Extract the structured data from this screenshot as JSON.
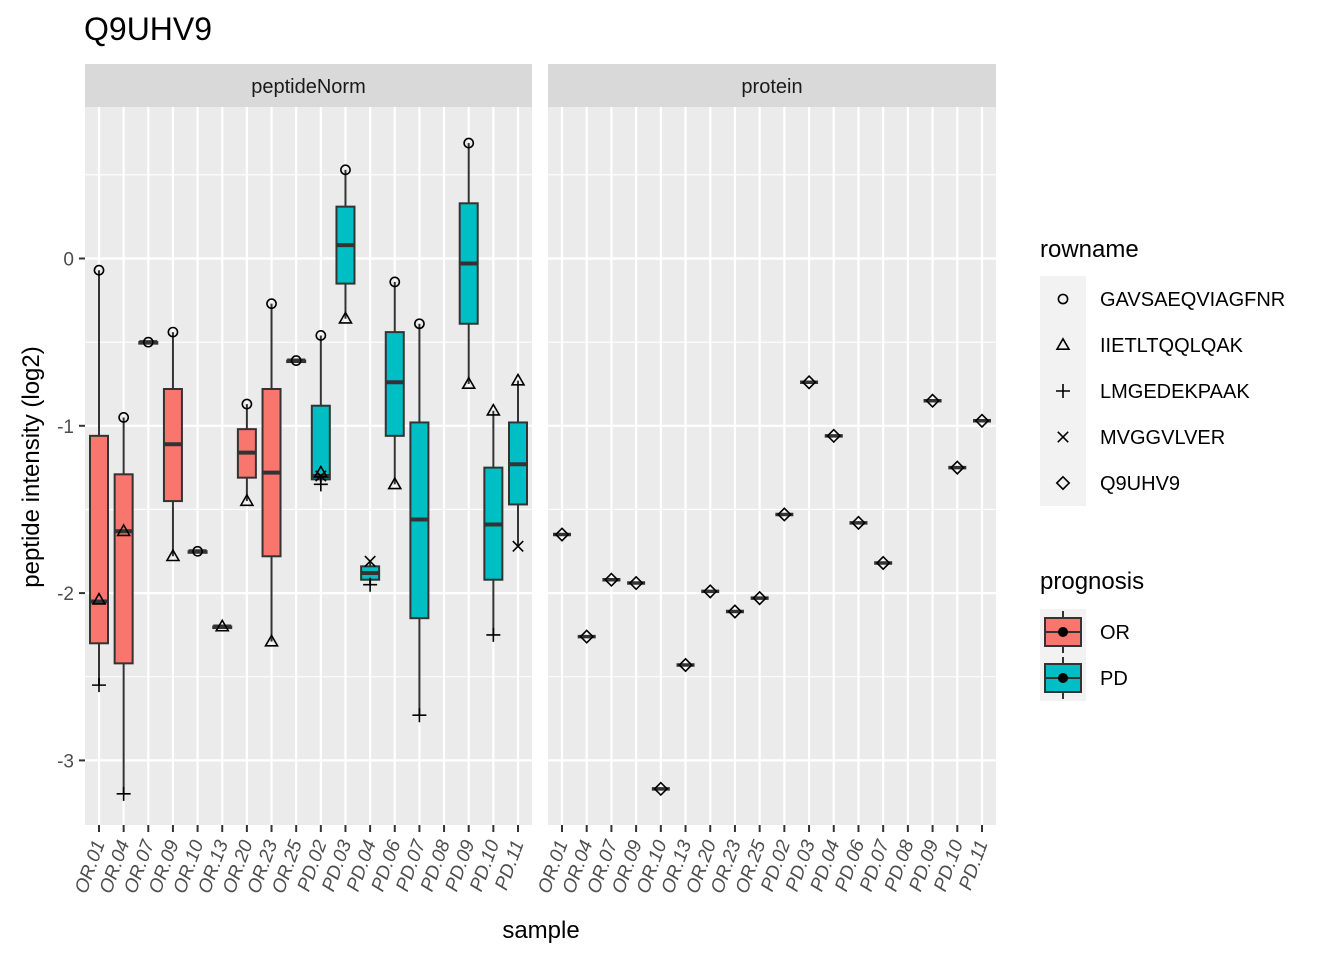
{
  "chart_data": {
    "type": "box",
    "title": "Q9UHV9",
    "xlabel": "sample",
    "ylabel": "peptide intensity (log2)",
    "ylim": [
      -3.4,
      0.9
    ],
    "yticks": [
      0,
      -1,
      -2,
      -3
    ],
    "grid": true,
    "legend_position": "right",
    "panels": [
      "peptideNorm",
      "protein"
    ],
    "samples": [
      "OR.01",
      "OR.04",
      "OR.07",
      "OR.09",
      "OR.10",
      "OR.13",
      "OR.20",
      "OR.23",
      "OR.25",
      "PD.02",
      "PD.03",
      "PD.04",
      "PD.06",
      "PD.07",
      "PD.08",
      "PD.09",
      "PD.10",
      "PD.11"
    ],
    "legend_rowname": {
      "title": "rowname",
      "items": [
        {
          "label": "GAVSAEQVIAGFNR",
          "shape": "circle"
        },
        {
          "label": "IIETLTQQLQAK",
          "shape": "triangle"
        },
        {
          "label": "LMGEDEKPAAK",
          "shape": "plus"
        },
        {
          "label": "MVGGVLVER",
          "shape": "cross"
        },
        {
          "label": "Q9UHV9",
          "shape": "diamond"
        }
      ]
    },
    "legend_prognosis": {
      "title": "prognosis",
      "items": [
        {
          "label": "OR",
          "color": "#F8766D"
        },
        {
          "label": "PD",
          "color": "#00BFC4"
        }
      ]
    },
    "peptideNorm": [
      {
        "sample": "OR.01",
        "group": "OR",
        "box": [
          -2.55,
          -2.3,
          -2.05,
          -1.06,
          -0.07
        ],
        "points": [
          {
            "shape": "circle",
            "y": -0.07
          },
          {
            "shape": "triangle",
            "y": -2.04
          },
          {
            "shape": "plus",
            "y": -2.55
          }
        ]
      },
      {
        "sample": "OR.04",
        "group": "OR",
        "box": [
          -3.2,
          -2.42,
          -1.63,
          -1.29,
          -0.95
        ],
        "points": [
          {
            "shape": "circle",
            "y": -0.95
          },
          {
            "shape": "triangle",
            "y": -1.63
          },
          {
            "shape": "plus",
            "y": -3.2
          }
        ]
      },
      {
        "sample": "OR.07",
        "group": "OR",
        "box": [
          -0.5,
          -0.5,
          -0.5,
          -0.5,
          -0.5
        ],
        "points": [
          {
            "shape": "circle",
            "y": -0.5
          }
        ]
      },
      {
        "sample": "OR.09",
        "group": "OR",
        "box": [
          -1.78,
          -1.45,
          -1.11,
          -0.78,
          -0.44
        ],
        "points": [
          {
            "shape": "circle",
            "y": -0.44
          },
          {
            "shape": "triangle",
            "y": -1.78
          }
        ]
      },
      {
        "sample": "OR.10",
        "group": "OR",
        "box": [
          -1.75,
          -1.75,
          -1.75,
          -1.75,
          -1.75
        ],
        "points": [
          {
            "shape": "circle",
            "y": -1.75
          }
        ]
      },
      {
        "sample": "OR.13",
        "group": "OR",
        "box": [
          -2.2,
          -2.2,
          -2.2,
          -2.2,
          -2.2
        ],
        "points": [
          {
            "shape": "triangle",
            "y": -2.2
          }
        ]
      },
      {
        "sample": "OR.20",
        "group": "OR",
        "box": [
          -1.45,
          -1.31,
          -1.16,
          -1.02,
          -0.87
        ],
        "points": [
          {
            "shape": "circle",
            "y": -0.87
          },
          {
            "shape": "triangle",
            "y": -1.45
          }
        ]
      },
      {
        "sample": "OR.23",
        "group": "OR",
        "box": [
          -2.29,
          -1.78,
          -1.28,
          -0.78,
          -0.27
        ],
        "points": [
          {
            "shape": "circle",
            "y": -0.27
          },
          {
            "shape": "triangle",
            "y": -2.29
          }
        ]
      },
      {
        "sample": "OR.25",
        "group": "OR",
        "box": [
          -0.61,
          -0.61,
          -0.61,
          -0.61,
          -0.61
        ],
        "points": [
          {
            "shape": "circle",
            "y": -0.61
          }
        ]
      },
      {
        "sample": "PD.02",
        "group": "PD",
        "box": [
          -1.34,
          -1.32,
          -1.3,
          -0.88,
          -0.46
        ],
        "points": [
          {
            "shape": "circle",
            "y": -0.46
          },
          {
            "shape": "triangle",
            "y": -1.28
          },
          {
            "shape": "cross",
            "y": -1.3
          },
          {
            "shape": "plus",
            "y": -1.35
          }
        ]
      },
      {
        "sample": "PD.03",
        "group": "PD",
        "box": [
          -0.36,
          -0.15,
          0.08,
          0.31,
          0.53
        ],
        "points": [
          {
            "shape": "circle",
            "y": 0.53
          },
          {
            "shape": "triangle",
            "y": -0.36
          }
        ]
      },
      {
        "sample": "PD.04",
        "group": "PD",
        "box": [
          -1.95,
          -1.92,
          -1.88,
          -1.84,
          -1.81
        ],
        "points": [
          {
            "shape": "cross",
            "y": -1.81
          },
          {
            "shape": "plus",
            "y": -1.95
          }
        ]
      },
      {
        "sample": "PD.06",
        "group": "PD",
        "box": [
          -1.35,
          -1.06,
          -0.74,
          -0.44,
          -0.14
        ],
        "points": [
          {
            "shape": "circle",
            "y": -0.14
          },
          {
            "shape": "triangle",
            "y": -1.35
          }
        ]
      },
      {
        "sample": "PD.07",
        "group": "PD",
        "box": [
          -2.73,
          -2.15,
          -1.56,
          -0.98,
          -0.39
        ],
        "points": [
          {
            "shape": "circle",
            "y": -0.39
          },
          {
            "shape": "plus",
            "y": -2.73
          }
        ]
      },
      {
        "sample": "PD.08",
        "group": "PD",
        "box": null,
        "points": []
      },
      {
        "sample": "PD.09",
        "group": "PD",
        "box": [
          -0.75,
          -0.39,
          -0.03,
          0.33,
          0.69
        ],
        "points": [
          {
            "shape": "circle",
            "y": 0.69
          },
          {
            "shape": "triangle",
            "y": -0.75
          }
        ]
      },
      {
        "sample": "PD.10",
        "group": "PD",
        "box": [
          -2.25,
          -1.92,
          -1.59,
          -1.25,
          -0.91
        ],
        "points": [
          {
            "shape": "triangle",
            "y": -0.91
          },
          {
            "shape": "plus",
            "y": -2.25
          }
        ]
      },
      {
        "sample": "PD.11",
        "group": "PD",
        "box": [
          -1.72,
          -1.47,
          -1.23,
          -0.98,
          -0.73
        ],
        "points": [
          {
            "shape": "triangle",
            "y": -0.73
          },
          {
            "shape": "cross",
            "y": -1.72
          }
        ]
      }
    ],
    "protein": [
      {
        "sample": "OR.01",
        "group": "OR",
        "y": -1.65
      },
      {
        "sample": "OR.04",
        "group": "OR",
        "y": -2.26
      },
      {
        "sample": "OR.07",
        "group": "OR",
        "y": -1.92
      },
      {
        "sample": "OR.09",
        "group": "OR",
        "y": -1.94
      },
      {
        "sample": "OR.10",
        "group": "OR",
        "y": -3.17
      },
      {
        "sample": "OR.13",
        "group": "OR",
        "y": -2.43
      },
      {
        "sample": "OR.20",
        "group": "OR",
        "y": -1.99
      },
      {
        "sample": "OR.23",
        "group": "OR",
        "y": -2.11
      },
      {
        "sample": "OR.25",
        "group": "OR",
        "y": -2.03
      },
      {
        "sample": "PD.02",
        "group": "PD",
        "y": -1.53
      },
      {
        "sample": "PD.03",
        "group": "PD",
        "y": -0.74
      },
      {
        "sample": "PD.04",
        "group": "PD",
        "y": -1.06
      },
      {
        "sample": "PD.06",
        "group": "PD",
        "y": -1.58
      },
      {
        "sample": "PD.07",
        "group": "PD",
        "y": -1.82
      },
      {
        "sample": "PD.08",
        "group": "PD",
        "y": null
      },
      {
        "sample": "PD.09",
        "group": "PD",
        "y": -0.85
      },
      {
        "sample": "PD.10",
        "group": "PD",
        "y": -1.25
      },
      {
        "sample": "PD.11",
        "group": "PD",
        "y": -0.97
      }
    ]
  }
}
